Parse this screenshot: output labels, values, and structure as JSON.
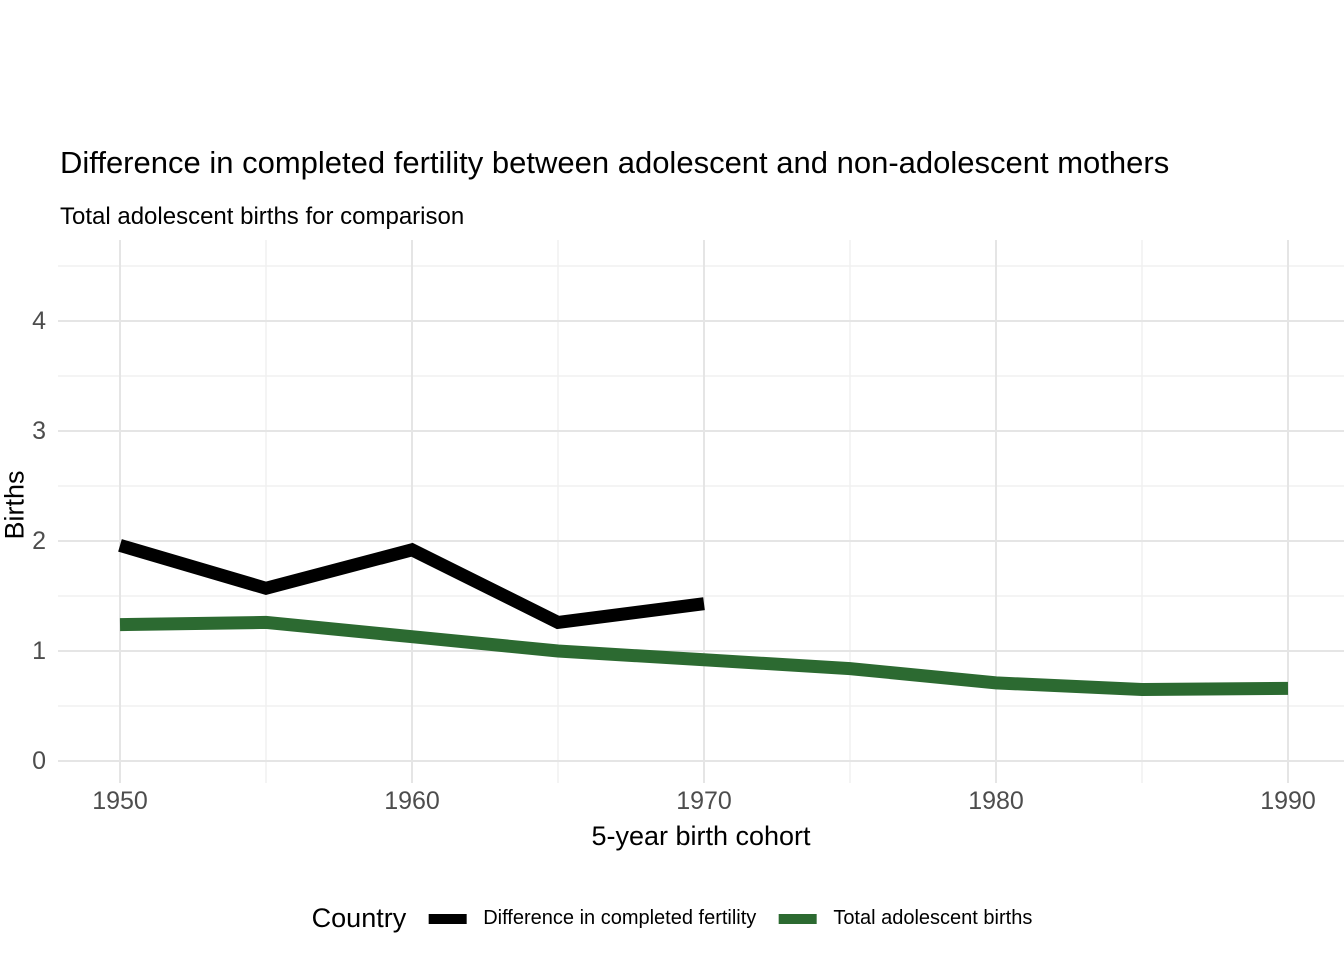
{
  "chart_data": {
    "type": "line",
    "title": "Difference in completed fertility between adolescent and non-adolescent mothers",
    "subtitle": "Total adolescent births for comparison",
    "xlabel": "5-year birth cohort",
    "ylabel": "Births",
    "x_ticks": [
      1950,
      1960,
      1970,
      1980,
      1990
    ],
    "x_minor_ticks": [
      1955,
      1965,
      1975,
      1985
    ],
    "y_ticks": [
      0,
      1,
      2,
      3,
      4
    ],
    "y_minor_ticks": [
      0.5,
      1.5,
      2.5,
      3.5,
      4.5
    ],
    "xlim": [
      1948,
      1992
    ],
    "ylim": [
      -0.2,
      4.75
    ],
    "grid": "on",
    "legend_position": "bottom",
    "legend_title": "Country",
    "colors": {
      "difference_line": "#000000",
      "total_births_line": "#2c6a31",
      "major_grid": "#e5e5e5",
      "minor_grid": "#f0f0f0",
      "tick_text": "#4d4d4d"
    },
    "series": [
      {
        "name": "Difference in completed fertility",
        "color": "#000000",
        "x": [
          1950,
          1955,
          1960,
          1965,
          1970
        ],
        "values": [
          1.96,
          1.57,
          1.92,
          1.26,
          1.43
        ]
      },
      {
        "name": "Total adolescent births",
        "color": "#2c6a31",
        "x": [
          1950,
          1955,
          1960,
          1965,
          1970,
          1975,
          1980,
          1985,
          1990
        ],
        "values": [
          1.24,
          1.26,
          1.13,
          1.0,
          0.92,
          0.84,
          0.71,
          0.65,
          0.66
        ]
      }
    ]
  }
}
